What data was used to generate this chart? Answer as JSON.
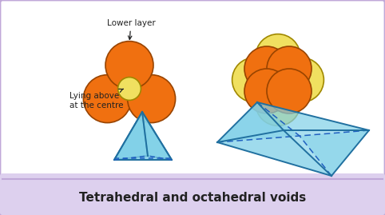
{
  "bg_color": "#ffffff",
  "border_color": "#c0a8d8",
  "caption_bg": "#ddd0ee",
  "caption_text": "Tetrahedral and octahedral voids",
  "caption_fontsize": 11,
  "orange_color": "#f07010",
  "orange_dark": "#994400",
  "yellow_color": "#f0e060",
  "yellow_dark": "#a08800",
  "blue_fill": "#7fd0e8",
  "blue_edge": "#2070a0",
  "blue_dash": "#2060c0",
  "label_lower": "Lower layer",
  "label_centre": "Lying above\nat the centre",
  "text_color": "#222222",
  "fig_width": 4.82,
  "fig_height": 2.69,
  "dpi": 100
}
